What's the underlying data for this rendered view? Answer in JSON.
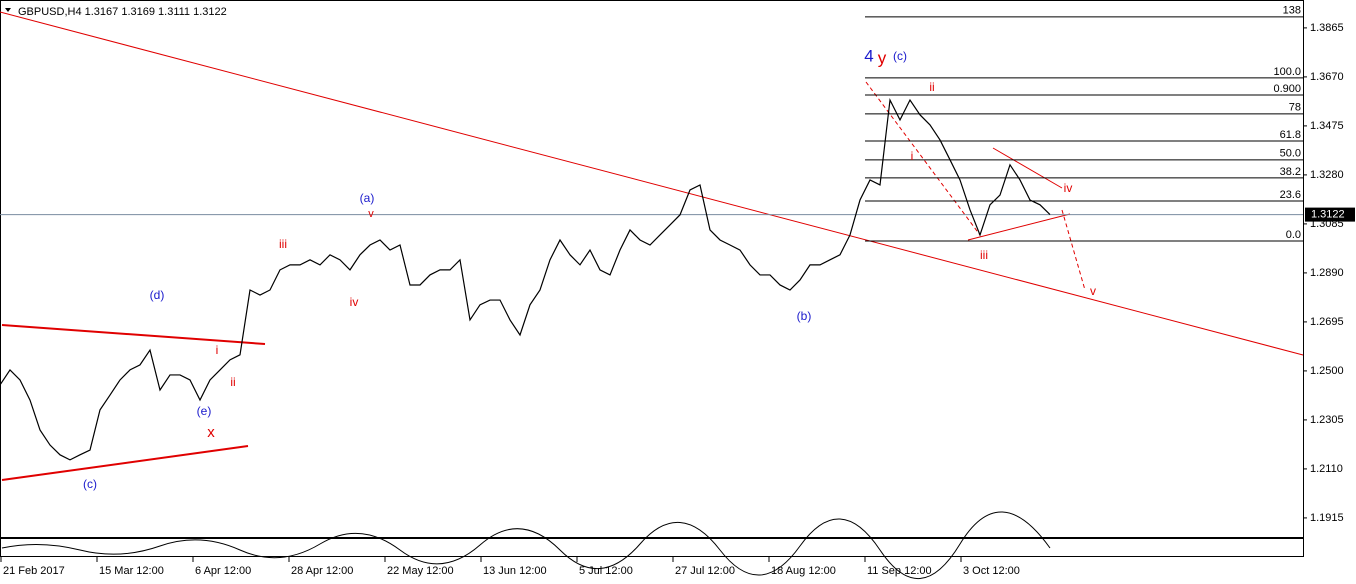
{
  "chart_data": {
    "type": "line",
    "title": "GBPUSD,H4  1.3167 1.3169 1.3111 1.3122",
    "series": [
      {
        "name": "GBPUSD",
        "color": "#000000",
        "values": [
          1.2444,
          1.2504,
          1.2464,
          1.2384,
          1.2265,
          1.2205,
          1.2166,
          1.2146,
          1.2166,
          1.2185,
          1.2345,
          1.2404,
          1.2464,
          1.2504,
          1.2524,
          1.2583,
          1.2424,
          1.2484,
          1.2484,
          1.2464,
          1.2384,
          1.2464,
          1.2504,
          1.2544,
          1.2564,
          1.2822,
          1.2802,
          1.2822,
          1.2902,
          1.2922,
          1.2922,
          1.2942,
          1.2922,
          1.2962,
          1.2942,
          1.2902,
          1.2962,
          1.3001,
          1.3021,
          1.2981,
          1.3001,
          1.2842,
          1.2842,
          1.2882,
          1.2902,
          1.2902,
          1.2942,
          1.2703,
          1.2763,
          1.2782,
          1.2782,
          1.2703,
          1.2643,
          1.2763,
          1.2822,
          1.2942,
          1.3021,
          1.2962,
          1.2922,
          1.2981,
          1.2902,
          1.2882,
          1.2981,
          1.3061,
          1.3021,
          1.3001,
          1.3041,
          1.3081,
          1.3121,
          1.322,
          1.324,
          1.3061,
          1.3021,
          1.3001,
          1.2981,
          1.2922,
          1.2882,
          1.2882,
          1.2842,
          1.2822,
          1.2862,
          1.2922,
          1.2922,
          1.2942,
          1.2962,
          1.3041,
          1.318,
          1.326,
          1.324,
          1.3578,
          1.3499,
          1.3578,
          1.3519,
          1.3479,
          1.3419,
          1.334,
          1.326,
          1.3141,
          1.3041,
          1.3161,
          1.32,
          1.332,
          1.326,
          1.318,
          1.3161,
          1.3122
        ]
      }
    ],
    "xlim": [
      0,
      130.3
    ],
    "xticks": [
      {
        "value": 0,
        "label": "21 Feb 2017"
      },
      {
        "value": 9.6,
        "label": "15 Mar 12:00"
      },
      {
        "value": 19.2,
        "label": "6 Apr 12:00"
      },
      {
        "value": 28.8,
        "label": "28 Apr 12:00"
      },
      {
        "value": 38.4,
        "label": "22 May 12:00"
      },
      {
        "value": 48,
        "label": "13 Jun 12:00"
      },
      {
        "value": 57.6,
        "label": "5 Jul 12:00"
      },
      {
        "value": 67.2,
        "label": "27 Jul 12:00"
      },
      {
        "value": 76.8,
        "label": "18 Aug 12:00"
      },
      {
        "value": 86.4,
        "label": "11 Sep 12:00"
      },
      {
        "value": 96,
        "label": "3 Oct 12:00"
      }
    ],
    "ylim": [
      1.1847,
      1.3976
    ],
    "yticks": [
      {
        "value": 1.3865,
        "label": "1.3865"
      },
      {
        "value": 1.367,
        "label": "1.3670"
      },
      {
        "value": 1.3475,
        "label": "1.3475"
      },
      {
        "value": 1.328,
        "label": "1.3280"
      },
      {
        "value": 1.3085,
        "label": "1.3085"
      },
      {
        "value": 1.289,
        "label": "1.2890"
      },
      {
        "value": 1.2695,
        "label": "1.2695"
      },
      {
        "value": 1.25,
        "label": "1.2500"
      },
      {
        "value": 1.2305,
        "label": "1.2305"
      },
      {
        "value": 1.211,
        "label": "1.2110"
      },
      {
        "value": 1.1915,
        "label": "1.1915"
      }
    ],
    "last_price": {
      "value": 1.3122,
      "label": "1.3122"
    },
    "fib_levels": [
      {
        "label": "138",
        "value": 1.3909
      },
      {
        "label": "100.0",
        "value": 1.3666
      },
      {
        "label": "0.900",
        "value": 1.3598
      },
      {
        "label": "78",
        "value": 1.3523
      },
      {
        "label": "61.8",
        "value": 1.3415
      },
      {
        "label": "50.0",
        "value": 1.334
      },
      {
        "label": "38.2",
        "value": 1.3268
      },
      {
        "label": "23.6",
        "value": 1.3176
      },
      {
        "label": "0.0",
        "value": 1.3017
      }
    ],
    "annotations": [
      {
        "text": "(a)",
        "color": "#1a1acc"
      },
      {
        "text": "v",
        "color": "#e00000"
      },
      {
        "text": "iii",
        "color": "#e00000"
      },
      {
        "text": "iv",
        "color": "#e00000"
      },
      {
        "text": "(d)",
        "color": "#1a1acc"
      },
      {
        "text": "i",
        "color": "#e00000"
      },
      {
        "text": "ii",
        "color": "#e00000"
      },
      {
        "text": "(e)",
        "color": "#1a1acc"
      },
      {
        "text": "x",
        "color": "#e00000"
      },
      {
        "text": "(c)",
        "color": "#1a1acc"
      },
      {
        "text": "(b)",
        "color": "#1a1acc"
      },
      {
        "text": "4",
        "color": "#1a1acc"
      },
      {
        "text": "y",
        "color": "#e00000"
      },
      {
        "text": "(c)",
        "color": "#1a1acc"
      },
      {
        "text": "ii",
        "color": "#e00000"
      },
      {
        "text": "i",
        "color": "#e00000"
      },
      {
        "text": "iii",
        "color": "#e00000"
      },
      {
        "text": "iv",
        "color": "#e00000"
      },
      {
        "text": "v",
        "color": "#e00000"
      }
    ]
  }
}
